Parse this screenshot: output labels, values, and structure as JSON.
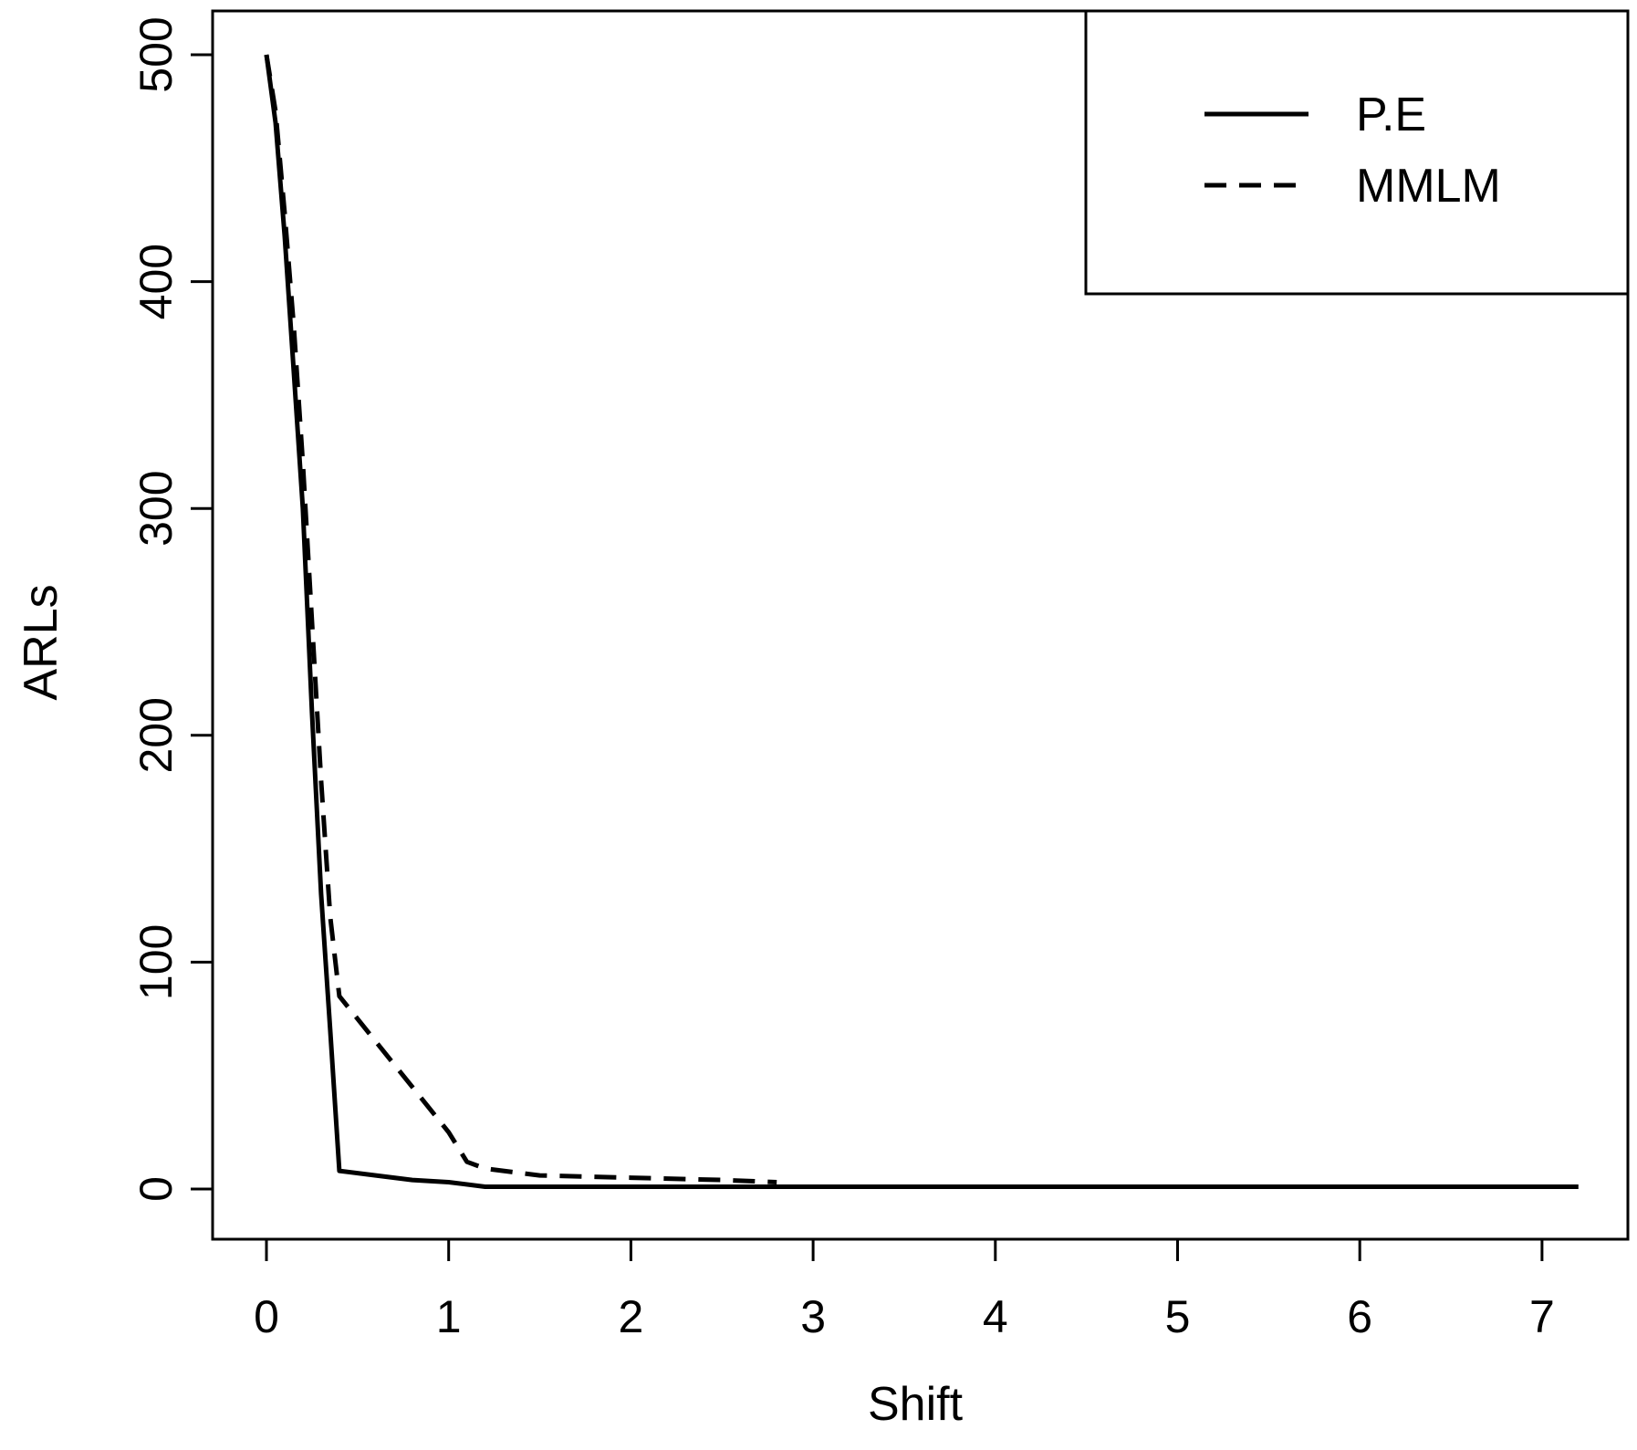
{
  "chart_data": {
    "type": "line",
    "title": "",
    "xlabel": "Shift",
    "ylabel": "ARLs",
    "xlim": [
      -0.28,
      7.48
    ],
    "ylim": [
      -20,
      500
    ],
    "x_ticks": [
      "0",
      "1",
      "2",
      "3",
      "4",
      "5",
      "6",
      "7"
    ],
    "y_ticks": [
      "0",
      "100",
      "200",
      "300",
      "400",
      "500"
    ],
    "grid": false,
    "legend_position": "top-right",
    "colors": {
      "line": "#000000",
      "background": "#ffffff"
    },
    "series": [
      {
        "name": "P.E",
        "style": "solid",
        "points": [
          [
            0.0,
            500
          ],
          [
            0.05,
            470
          ],
          [
            0.1,
            420
          ],
          [
            0.15,
            360
          ],
          [
            0.2,
            300
          ],
          [
            0.25,
            210
          ],
          [
            0.3,
            130
          ],
          [
            0.35,
            70
          ],
          [
            0.4,
            8
          ],
          [
            0.6,
            6
          ],
          [
            0.8,
            4
          ],
          [
            1.0,
            3
          ],
          [
            1.2,
            1
          ],
          [
            1.5,
            1
          ],
          [
            2.0,
            1
          ],
          [
            3.0,
            1
          ],
          [
            4.0,
            1
          ],
          [
            5.0,
            1
          ],
          [
            6.0,
            1
          ],
          [
            7.0,
            1
          ],
          [
            7.2,
            1
          ]
        ]
      },
      {
        "name": "MMLM",
        "style": "dashed",
        "points": [
          [
            0.0,
            500
          ],
          [
            0.05,
            475
          ],
          [
            0.1,
            430
          ],
          [
            0.15,
            380
          ],
          [
            0.2,
            320
          ],
          [
            0.25,
            250
          ],
          [
            0.3,
            180
          ],
          [
            0.35,
            120
          ],
          [
            0.4,
            85
          ],
          [
            0.6,
            65
          ],
          [
            0.8,
            45
          ],
          [
            1.0,
            25
          ],
          [
            1.1,
            12
          ],
          [
            1.2,
            9
          ],
          [
            1.5,
            6
          ],
          [
            2.0,
            5
          ],
          [
            2.5,
            4
          ],
          [
            2.8,
            3
          ]
        ]
      }
    ]
  }
}
